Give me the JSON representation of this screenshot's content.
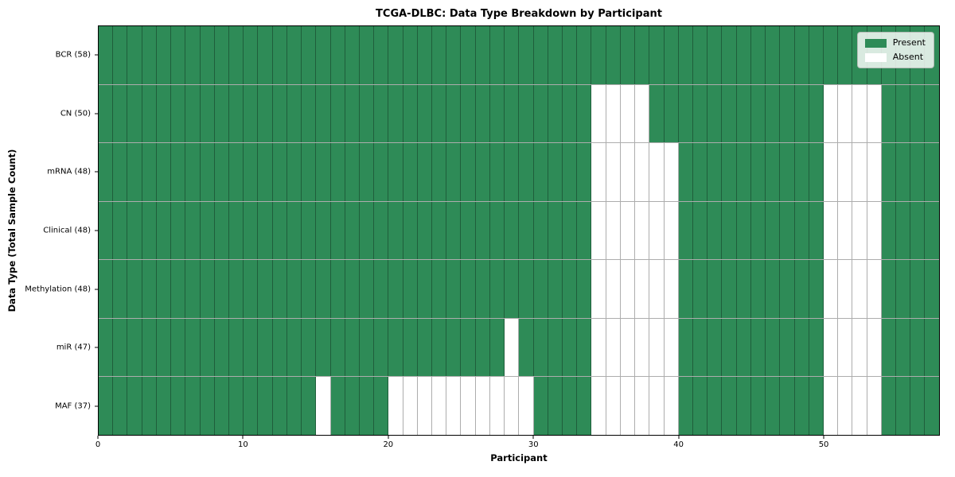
{
  "chart_data": {
    "type": "heatmap",
    "title": "TCGA-DLBC: Data Type Breakdown by Participant",
    "xlabel": "Participant",
    "ylabel": "Data Type (Total Sample Count)",
    "n_participants": 58,
    "x_axis": {
      "range": [
        0,
        58
      ],
      "ticks": [
        0,
        10,
        20,
        30,
        40,
        50
      ]
    },
    "grid": true,
    "rows": [
      {
        "name": "BCR",
        "label": "BCR (58)",
        "present_count": 58,
        "absent_participants": []
      },
      {
        "name": "CN",
        "label": "CN (50)",
        "present_count": 50,
        "absent_participants": [
          34,
          35,
          36,
          37,
          50,
          51,
          52,
          53
        ]
      },
      {
        "name": "mRNA",
        "label": "mRNA (48)",
        "present_count": 48,
        "absent_participants": [
          34,
          35,
          36,
          37,
          38,
          39,
          50,
          51,
          52,
          53
        ]
      },
      {
        "name": "Clinical",
        "label": "Clinical (48)",
        "present_count": 48,
        "absent_participants": [
          34,
          35,
          36,
          37,
          38,
          39,
          50,
          51,
          52,
          53
        ]
      },
      {
        "name": "Methylation",
        "label": "Methylation (48)",
        "present_count": 48,
        "absent_participants": [
          34,
          35,
          36,
          37,
          38,
          39,
          50,
          51,
          52,
          53
        ]
      },
      {
        "name": "miR",
        "label": "miR (47)",
        "present_count": 47,
        "absent_participants": [
          28,
          34,
          35,
          36,
          37,
          38,
          39,
          50,
          51,
          52,
          53
        ]
      },
      {
        "name": "MAF",
        "label": "MAF (37)",
        "present_count": 37,
        "absent_participants": [
          15,
          20,
          21,
          22,
          23,
          24,
          25,
          26,
          27,
          28,
          29,
          34,
          35,
          36,
          37,
          38,
          39,
          50,
          51,
          52,
          53
        ]
      }
    ],
    "legend": {
      "position": "upper-right",
      "entries": [
        {
          "label": "Present",
          "color": "#2E8B57"
        },
        {
          "label": "Absent",
          "color": "#FFFFFF"
        }
      ]
    },
    "colors": {
      "present": "#2E8B57",
      "absent": "#FFFFFF",
      "gridline": "rgba(0,0,0,0.32)",
      "spine": "#000000"
    }
  }
}
